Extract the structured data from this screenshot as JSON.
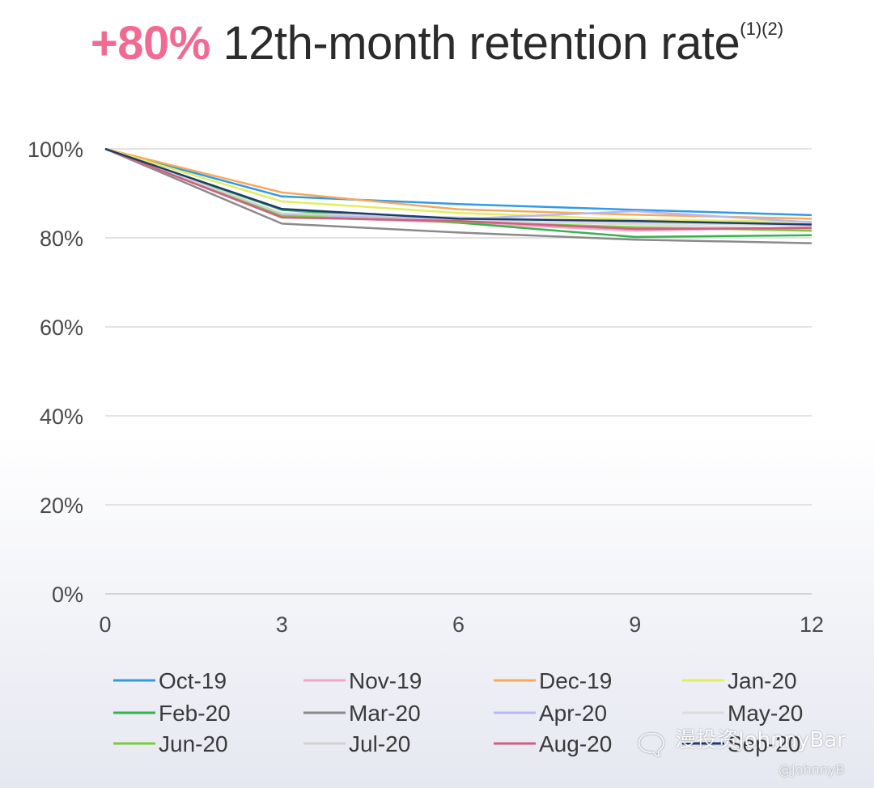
{
  "title": {
    "highlight": "+80%",
    "text": "12th-month retention rate",
    "note": "(1)(2)"
  },
  "watermark": {
    "icon": "wechat-icon",
    "badge": "漫投资JohnnyBar",
    "handle": "@JohnnyB"
  },
  "chart_data": {
    "type": "line",
    "title": "+80% 12th-month retention rate (1)(2)",
    "xlabel": "",
    "ylabel": "",
    "x": [
      0,
      3,
      6,
      9,
      12
    ],
    "x_ticks": [
      "0",
      "3",
      "6",
      "9",
      "12"
    ],
    "y_ticks": [
      "0%",
      "20%",
      "40%",
      "60%",
      "80%",
      "100%"
    ],
    "xlim": [
      0,
      12
    ],
    "ylim": [
      0,
      100
    ],
    "grid": true,
    "legend_position": "bottom",
    "series": [
      {
        "name": "Oct-19",
        "color": "#2f9be8",
        "values": [
          100,
          89.3,
          87.6,
          86.3,
          85.1
        ]
      },
      {
        "name": "Nov-19",
        "color": "#f2a7c4",
        "values": [
          100,
          84.8,
          83.4,
          81.6,
          82.4
        ]
      },
      {
        "name": "Dec-19",
        "color": "#f7a85c",
        "values": [
          100,
          90.2,
          86.4,
          85.2,
          84.3
        ]
      },
      {
        "name": "Jan-20",
        "color": "#e3ee5a",
        "values": [
          100,
          88.2,
          85.6,
          84.1,
          83.6
        ]
      },
      {
        "name": "Feb-20",
        "color": "#35b34f",
        "values": [
          100,
          86.3,
          83.4,
          80.2,
          80.6
        ]
      },
      {
        "name": "Mar-20",
        "color": "#8a8a8a",
        "values": [
          100,
          83.2,
          81.2,
          79.6,
          78.8
        ]
      },
      {
        "name": "Apr-20",
        "color": "#b9b7f2",
        "values": [
          100,
          85.3,
          84.2,
          86.0,
          83.5
        ]
      },
      {
        "name": "May-20",
        "color": "#dcdcdc",
        "values": [
          100,
          84.5,
          84.0,
          83.0,
          82.0
        ]
      },
      {
        "name": "Jun-20",
        "color": "#7acb3c",
        "values": [
          100,
          84.9,
          83.6,
          82.4,
          81.6
        ]
      },
      {
        "name": "Jul-20",
        "color": "#d2d2d2",
        "values": [
          100,
          85.5,
          84.6,
          83.4,
          82.8
        ]
      },
      {
        "name": "Aug-20",
        "color": "#cf5e82",
        "values": [
          100,
          84.6,
          83.8,
          82.0,
          82.2
        ]
      },
      {
        "name": "Sep-20",
        "color": "#1e3b70",
        "values": [
          100,
          86.5,
          84.3,
          83.8,
          83.0
        ]
      }
    ]
  }
}
